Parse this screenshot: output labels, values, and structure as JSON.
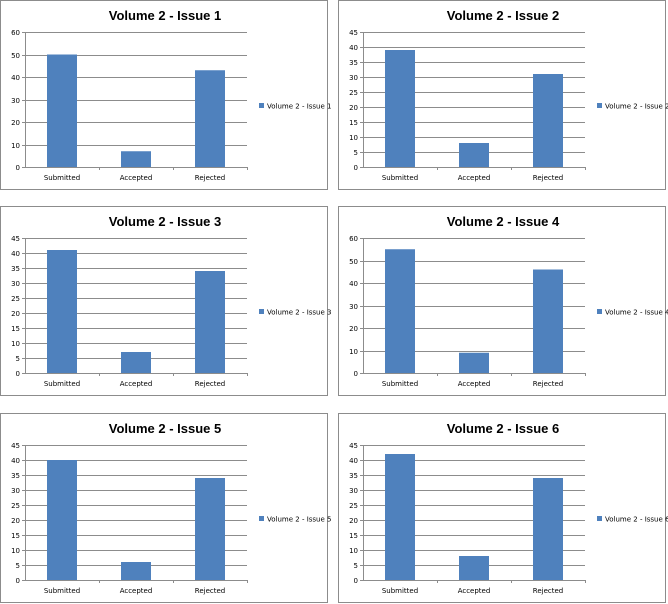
{
  "chart_data": [
    {
      "type": "bar",
      "title": "Volume 2 - Issue 1",
      "categories": [
        "Submitted",
        "Accepted",
        "Rejected"
      ],
      "series": [
        {
          "name": "Volume 2 - Issue 1",
          "values": [
            50,
            7,
            43
          ]
        }
      ],
      "ylim": [
        0,
        60
      ],
      "yticks": [
        0,
        10,
        20,
        30,
        40,
        50,
        60
      ],
      "grid": true,
      "legend": "right",
      "color": "#4f81bd"
    },
    {
      "type": "bar",
      "title": "Volume 2 - Issue 2",
      "categories": [
        "Submitted",
        "Accepted",
        "Rejected"
      ],
      "series": [
        {
          "name": "Volume 2 - Issue 2",
          "values": [
            39,
            8,
            31
          ]
        }
      ],
      "ylim": [
        0,
        45
      ],
      "yticks": [
        0,
        5,
        10,
        15,
        20,
        25,
        30,
        35,
        40,
        45
      ],
      "grid": true,
      "legend": "right",
      "color": "#4f81bd"
    },
    {
      "type": "bar",
      "title": "Volume 2 - Issue 3",
      "categories": [
        "Submitted",
        "Accepted",
        "Rejected"
      ],
      "series": [
        {
          "name": "Volume 2 - Issue 3",
          "values": [
            41,
            7,
            34
          ]
        }
      ],
      "ylim": [
        0,
        45
      ],
      "yticks": [
        0,
        5,
        10,
        15,
        20,
        25,
        30,
        35,
        40,
        45
      ],
      "grid": true,
      "legend": "right",
      "color": "#4f81bd"
    },
    {
      "type": "bar",
      "title": "Volume 2 - Issue 4",
      "categories": [
        "Submitted",
        "Accepted",
        "Rejected"
      ],
      "series": [
        {
          "name": "Volume 2 - Issue 4",
          "values": [
            55,
            9,
            46
          ]
        }
      ],
      "ylim": [
        0,
        60
      ],
      "yticks": [
        0,
        10,
        20,
        30,
        40,
        50,
        60
      ],
      "grid": true,
      "legend": "right",
      "color": "#4f81bd"
    },
    {
      "type": "bar",
      "title": "Volume 2 - Issue 5",
      "categories": [
        "Submitted",
        "Accepted",
        "Rejected"
      ],
      "series": [
        {
          "name": "Volume 2 - Issue 5",
          "values": [
            40,
            6,
            34
          ]
        }
      ],
      "ylim": [
        0,
        45
      ],
      "yticks": [
        0,
        5,
        10,
        15,
        20,
        25,
        30,
        35,
        40,
        45
      ],
      "grid": true,
      "legend": "right",
      "color": "#4f81bd"
    },
    {
      "type": "bar",
      "title": "Volume 2 - Issue 6",
      "categories": [
        "Submitted",
        "Accepted",
        "Rejected"
      ],
      "series": [
        {
          "name": "Volume 2 - Issue 6",
          "values": [
            42,
            8,
            34
          ]
        }
      ],
      "ylim": [
        0,
        45
      ],
      "yticks": [
        0,
        5,
        10,
        15,
        20,
        25,
        30,
        35,
        40,
        45
      ],
      "grid": true,
      "legend": "right",
      "color": "#4f81bd"
    }
  ]
}
